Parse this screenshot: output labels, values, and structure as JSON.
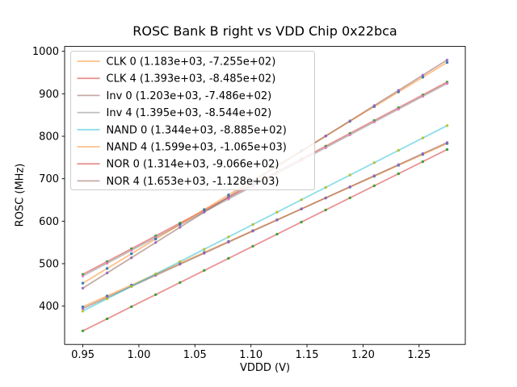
{
  "chart_data": {
    "type": "scatter",
    "title": "ROSC Bank B right vs VDD Chip 0x22bca",
    "xlabel": "VDDD (V)",
    "ylabel": "ROSC (MHz)",
    "xlim": [
      0.93375,
      1.29125
    ],
    "ylim": [
      309.8,
      1011.5
    ],
    "x_ticks": [
      {
        "value": 0.95,
        "label": "0.95"
      },
      {
        "value": 1.0,
        "label": "1.00"
      },
      {
        "value": 1.05,
        "label": "1.05"
      },
      {
        "value": 1.1,
        "label": "1.10"
      },
      {
        "value": 1.15,
        "label": "1.15"
      },
      {
        "value": 1.2,
        "label": "1.20"
      },
      {
        "value": 1.25,
        "label": "1.25"
      }
    ],
    "y_ticks": [
      {
        "value": 400,
        "label": "400"
      },
      {
        "value": 500,
        "label": "500"
      },
      {
        "value": 600,
        "label": "600"
      },
      {
        "value": 700,
        "label": "700"
      },
      {
        "value": 800,
        "label": "800"
      },
      {
        "value": 900,
        "label": "900"
      },
      {
        "value": 1000,
        "label": "1000"
      }
    ],
    "x_points": {
      "start": 0.95,
      "end": 1.275,
      "count": 16
    },
    "line_alpha": 0.5,
    "grid": false,
    "legend_position": "upper left",
    "series": [
      {
        "name": "CLK 0",
        "label": "CLK 0 (1.183e+03, -7.255e+02)",
        "slope": 1183,
        "intercept": -725.5,
        "line_color": "#ff7f0e",
        "marker_color": "#1f77b4"
      },
      {
        "name": "CLK 4",
        "label": "CLK 4 (1.393e+03, -8.485e+02)",
        "slope": 1393,
        "intercept": -848.5,
        "line_color": "#d62728",
        "marker_color": "#2ca02c"
      },
      {
        "name": "Inv 0",
        "label": "Inv 0 (1.203e+03, -7.486e+02)",
        "slope": 1203,
        "intercept": -748.6,
        "line_color": "#8c564b",
        "marker_color": "#9467bd"
      },
      {
        "name": "Inv 4",
        "label": "Inv 4 (1.395e+03, -8.544e+02)",
        "slope": 1395,
        "intercept": -854.4,
        "line_color": "#7f7f7f",
        "marker_color": "#e377c2"
      },
      {
        "name": "NAND 0",
        "label": "NAND 0 (1.344e+03, -8.885e+02)",
        "slope": 1344,
        "intercept": -888.5,
        "line_color": "#17becf",
        "marker_color": "#bcbd22"
      },
      {
        "name": "NAND 4",
        "label": "NAND 4 (1.599e+03, -1.065e+03)",
        "slope": 1599,
        "intercept": -1065,
        "line_color": "#ff7f0e",
        "marker_color": "#1f77b4"
      },
      {
        "name": "NOR 0",
        "label": "NOR 0 (1.314e+03, -9.066e+02)",
        "slope": 1314,
        "intercept": -906.6,
        "line_color": "#d62728",
        "marker_color": "#2ca02c"
      },
      {
        "name": "NOR 4",
        "label": "NOR 4 (1.653e+03, -1.128e+03)",
        "slope": 1653,
        "intercept": -1128,
        "line_color": "#8c564b",
        "marker_color": "#9467bd"
      }
    ],
    "axis_color": "#000000",
    "legend_edge_color": "#cccccc"
  }
}
